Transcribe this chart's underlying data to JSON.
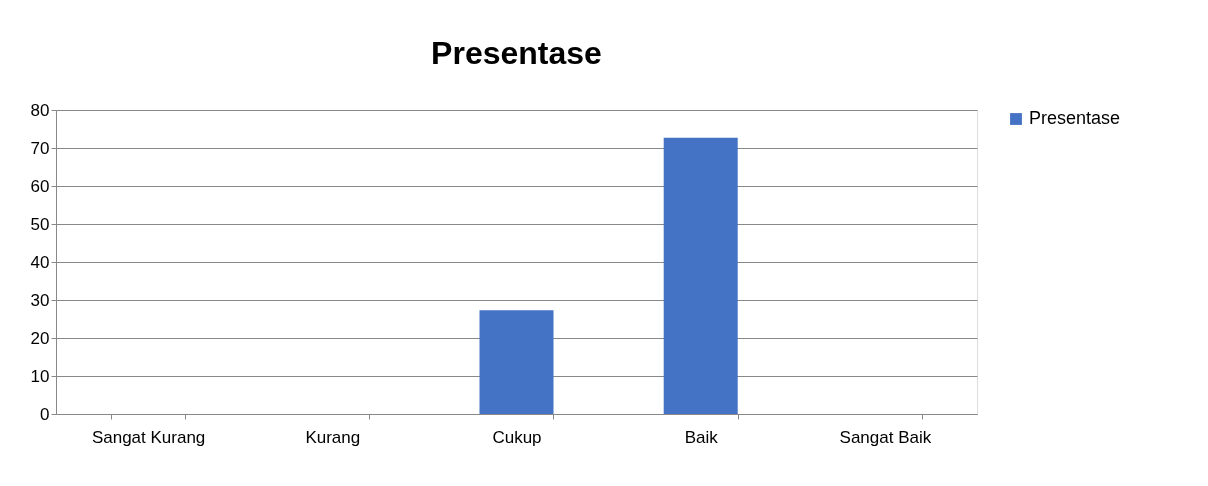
{
  "chart_data": {
    "type": "bar",
    "title": "Presentase",
    "categories": [
      "Sangat Kurang",
      "Kurang",
      "Cukup",
      "Baik",
      "Sangat Baik"
    ],
    "series": [
      {
        "name": "Presentase",
        "color": "#4472c4",
        "values": [
          0,
          0,
          27.3,
          72.7,
          0
        ]
      }
    ],
    "ylim": [
      0,
      80
    ],
    "yticks": [
      0,
      10,
      20,
      30,
      40,
      50,
      60,
      70,
      80
    ],
    "grid": "y",
    "legend": "right"
  }
}
